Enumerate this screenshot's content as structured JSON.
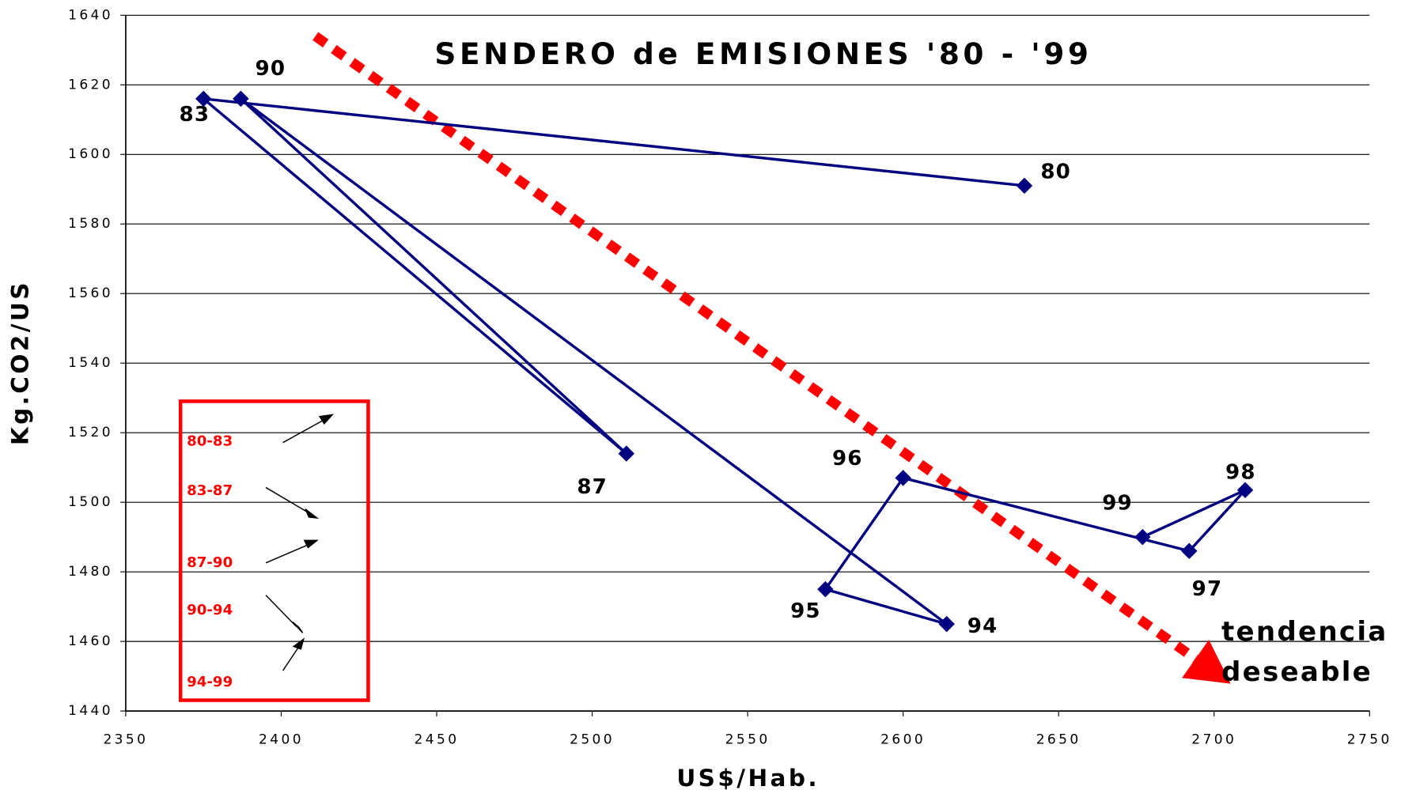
{
  "chart_data": {
    "type": "line",
    "title": "SENDERO de EMISIONES '80 - '99",
    "x_label": "US$/Hab.",
    "y_label": "Kg.CO2/US",
    "x": [
      2639,
      2375,
      2511,
      2387,
      2614,
      2575,
      2600,
      2692,
      2710,
      2677
    ],
    "series": [
      {
        "color": "#000080",
        "values": [
          1591,
          1616,
          1514,
          1616,
          1465,
          1475,
          1507,
          1486,
          1503.5,
          1490
        ]
      }
    ],
    "point_labels": [
      "80",
      "83",
      "87",
      "90",
      "94",
      "95",
      "96",
      "97",
      "98",
      "99"
    ],
    "xlim": [
      2350,
      2750
    ],
    "xticks": [
      2350,
      2400,
      2450,
      2500,
      2550,
      2600,
      2650,
      2700,
      2750
    ],
    "ylim": [
      1440,
      1640
    ],
    "yticks": [
      1440,
      1460,
      1480,
      1500,
      1520,
      1540,
      1560,
      1580,
      1600,
      1620,
      1640
    ],
    "grid": true,
    "trend": {
      "color": "#ff0000",
      "x": [
        2411,
        2694
      ],
      "y": [
        1634,
        1455
      ],
      "label": [
        "tendencia",
        "deseable"
      ]
    },
    "legend_box": {
      "color": "#ff0000",
      "labels": [
        "80-83",
        "83-87",
        "87-90",
        "90-94",
        "94-99"
      ]
    }
  }
}
